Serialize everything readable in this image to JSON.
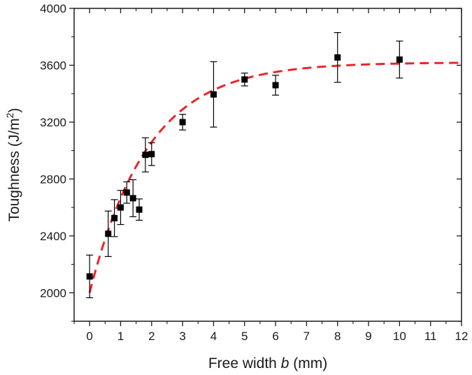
{
  "chart_data": {
    "type": "scatter",
    "xlabel": {
      "prefix": "Free width ",
      "italic": "b",
      "suffix": " (mm)"
    },
    "ylabel": {
      "prefix": "Toughness (J/m",
      "sup": "2",
      "suffix": ")"
    },
    "xlim": [
      -0.5,
      12
    ],
    "ylim": [
      1800,
      4000
    ],
    "xticks": [
      0,
      1,
      2,
      3,
      4,
      5,
      6,
      7,
      8,
      9,
      10,
      11,
      12
    ],
    "xtick_labels": [
      "0",
      "1",
      "2",
      "3",
      "4",
      "5",
      "6",
      "7",
      "8",
      "9",
      "10",
      "11",
      "12"
    ],
    "yticks": [
      2000,
      2400,
      2800,
      3200,
      3600,
      4000
    ],
    "ytick_labels": [
      "2000",
      "2400",
      "2800",
      "3200",
      "3600",
      "4000"
    ],
    "grid": false,
    "legend": "none",
    "series": [
      {
        "marker": "square",
        "color": "#000000",
        "points": [
          {
            "x": 0,
            "y": 2115,
            "err": 150
          },
          {
            "x": 0.6,
            "y": 2415,
            "err": 160
          },
          {
            "x": 0.8,
            "y": 2525,
            "err": 130
          },
          {
            "x": 1.0,
            "y": 2600,
            "err": 120
          },
          {
            "x": 1.2,
            "y": 2705,
            "err": 75
          },
          {
            "x": 1.4,
            "y": 2665,
            "err": 130
          },
          {
            "x": 1.6,
            "y": 2585,
            "err": 75
          },
          {
            "x": 1.8,
            "y": 2970,
            "err": 120
          },
          {
            "x": 2.0,
            "y": 2975,
            "err": 80
          },
          {
            "x": 3.0,
            "y": 3200,
            "err": 55
          },
          {
            "x": 4.0,
            "y": 3395,
            "err": 230
          },
          {
            "x": 5.0,
            "y": 3500,
            "err": 45
          },
          {
            "x": 6.0,
            "y": 3460,
            "err": 70
          },
          {
            "x": 8.0,
            "y": 3655,
            "err": 175
          },
          {
            "x": 10.0,
            "y": 3640,
            "err": 130
          }
        ]
      },
      {
        "type": "line",
        "style": "dashed",
        "color": "#e8262a",
        "fit": {
          "y0": 2000,
          "plateau": 3620,
          "k": 0.53,
          "xmin": 0,
          "xmax": 12
        }
      }
    ]
  }
}
